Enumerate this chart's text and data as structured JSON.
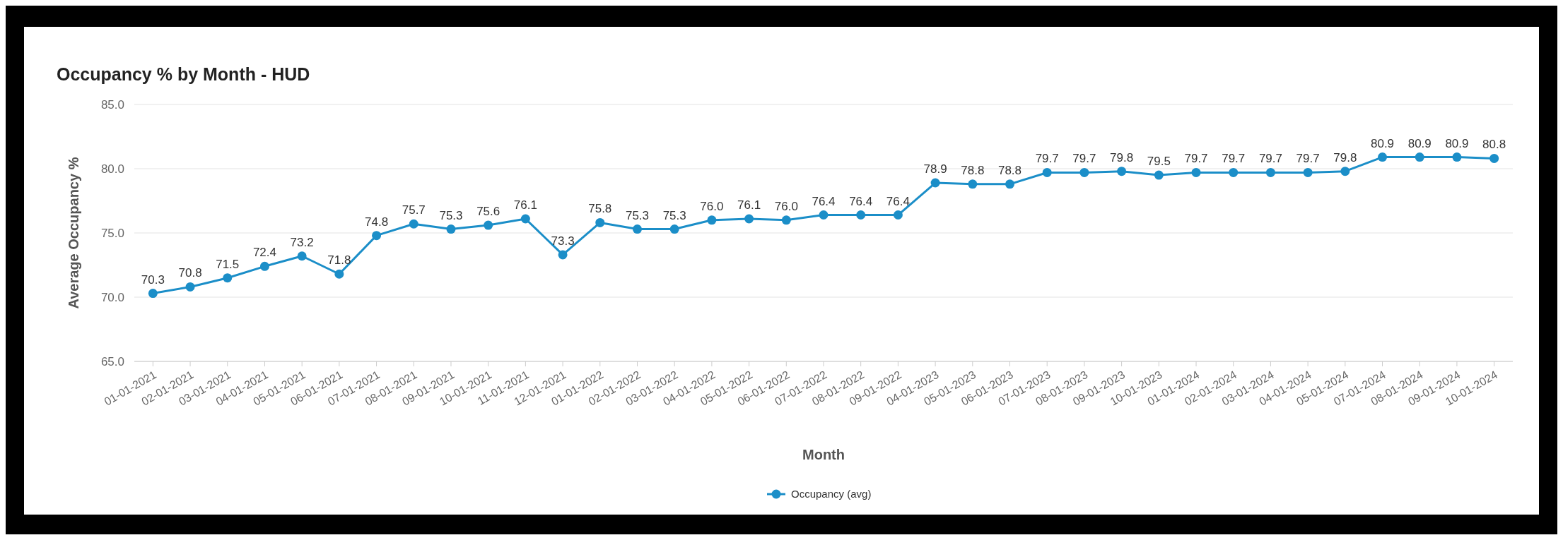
{
  "chart_data": {
    "type": "line",
    "title": "Occupancy % by Month - HUD",
    "xlabel": "Month",
    "ylabel": "Average Occupancy %",
    "categories": [
      "01-01-2021",
      "02-01-2021",
      "03-01-2021",
      "04-01-2021",
      "05-01-2021",
      "06-01-2021",
      "07-01-2021",
      "08-01-2021",
      "09-01-2021",
      "10-01-2021",
      "11-01-2021",
      "12-01-2021",
      "01-01-2022",
      "02-01-2022",
      "03-01-2022",
      "04-01-2022",
      "05-01-2022",
      "06-01-2022",
      "07-01-2022",
      "08-01-2022",
      "09-01-2022",
      "04-01-2023",
      "05-01-2023",
      "06-01-2023",
      "07-01-2023",
      "08-01-2023",
      "09-01-2023",
      "10-01-2023",
      "01-01-2024",
      "02-01-2024",
      "03-01-2024",
      "04-01-2024",
      "05-01-2024",
      "07-01-2024",
      "08-01-2024",
      "09-01-2024",
      "10-01-2024"
    ],
    "series": [
      {
        "name": "Occupancy (avg)",
        "color": "#1b8ec8",
        "values": [
          70.3,
          70.8,
          71.5,
          72.4,
          73.2,
          71.8,
          74.8,
          75.7,
          75.3,
          75.6,
          76.1,
          73.3,
          75.8,
          75.3,
          75.3,
          76.0,
          76.1,
          76.0,
          76.4,
          76.4,
          76.4,
          78.9,
          78.8,
          78.8,
          79.7,
          79.7,
          79.8,
          79.5,
          79.7,
          79.7,
          79.7,
          79.7,
          79.8,
          80.9,
          80.9,
          80.9,
          80.8
        ],
        "value_labels": [
          "70.3",
          "70.8",
          "71.5",
          "72.4",
          "73.2",
          "71.8",
          "74.8",
          "75.7",
          "75.3",
          "75.6",
          "76.1",
          "73.3",
          "75.8",
          "75.3",
          "75.3",
          "76.0",
          "76.1",
          "76.0",
          "76.4",
          "76.4",
          "76.4",
          "78.9",
          "78.8",
          "78.8",
          "79.7",
          "79.7",
          "79.8",
          "79.5",
          "79.7",
          "79.7",
          "79.7",
          "79.7",
          "79.8",
          "80.9",
          "80.9",
          "80.9",
          "80.8"
        ]
      }
    ],
    "ylim": [
      65,
      85
    ],
    "yticks": [
      {
        "value": 65,
        "label": "65.0"
      },
      {
        "value": 70,
        "label": "70.0"
      },
      {
        "value": 75,
        "label": "75.0"
      },
      {
        "value": 80,
        "label": "80.0"
      },
      {
        "value": 85,
        "label": "85.0"
      }
    ],
    "grid": "y",
    "legend": "bottom",
    "marker": "circle",
    "line_style": "solid"
  }
}
